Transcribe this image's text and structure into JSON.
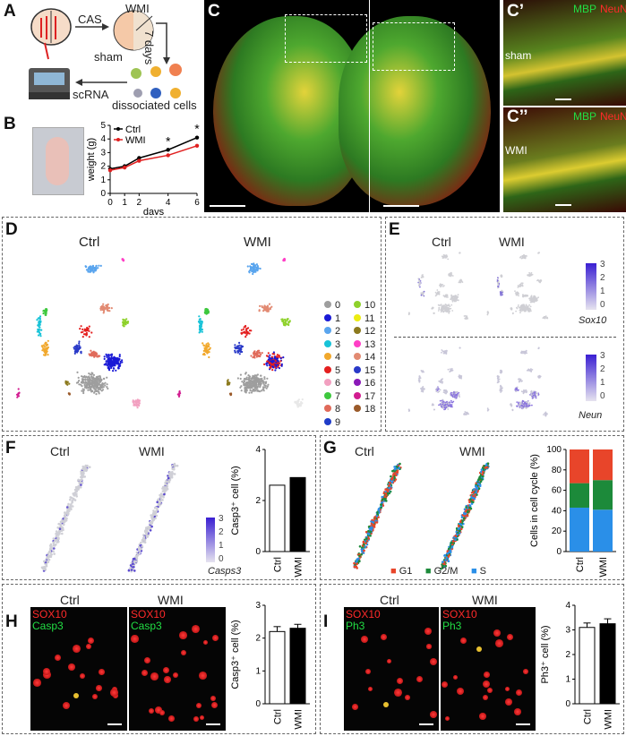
{
  "panels": {
    "A": "A",
    "B": "B",
    "C": "C",
    "C1": "C’",
    "C2": "C’’",
    "D": "D",
    "E": "E",
    "F": "F",
    "G": "G",
    "H": "H",
    "I": "I"
  },
  "panelA": {
    "cas": "CAS",
    "wmi": "WMI",
    "sham": "sham",
    "days": "7 days",
    "scrna": "scRNA",
    "dissociated": "dissociated cells"
  },
  "panelC": {
    "mbp": "MBP",
    "neun": "NeuN",
    "sham": "sham",
    "wmi": "WMI"
  },
  "groups": {
    "ctrl": "Ctrl",
    "wmi": "WMI"
  },
  "panelD": {
    "clusters": [
      "0",
      "1",
      "2",
      "3",
      "4",
      "5",
      "6",
      "7",
      "8",
      "9",
      "10",
      "11",
      "12",
      "13",
      "14",
      "15",
      "16",
      "17",
      "18"
    ],
    "cluster_colors": [
      "#9e9e9e",
      "#1a1ad6",
      "#5aa5ee",
      "#18c3d8",
      "#f1a82c",
      "#e41f1f",
      "#f2a0c0",
      "#3ec83e",
      "#e06a5a",
      "#1f3cc8",
      "#8ed12b",
      "#ecec12",
      "#8c7a1e",
      "#ff3fc6",
      "#e28a72",
      "#2a3ac8",
      "#8a19b8",
      "#d21c90",
      "#9a5a2a"
    ]
  },
  "panelE": {
    "genes": [
      "Sox10",
      "Neun"
    ],
    "scale_ticks": [
      "3",
      "2",
      "1",
      "0"
    ]
  },
  "panelF": {
    "gene": "Casps3",
    "scale_ticks": [
      "3",
      "2",
      "1",
      "0"
    ]
  },
  "panelG": {
    "legend": [
      "G1",
      "G2/M",
      "S"
    ],
    "legend_colors": [
      "#e8452a",
      "#1c8a3a",
      "#2a8fe8"
    ]
  },
  "panelH": {
    "stain1": "SOX10",
    "stain2": "Casp3"
  },
  "panelI": {
    "stain1": "SOX10",
    "stain2": "Ph3"
  },
  "chart_data": [
    {
      "id": "B",
      "type": "line",
      "xlabel": "days",
      "ylabel": "weight (g)",
      "x": [
        0,
        1,
        2,
        4,
        6
      ],
      "xlim": [
        0,
        6
      ],
      "ylim": [
        0,
        5
      ],
      "yticks": [
        0,
        1,
        2,
        3,
        4,
        5
      ],
      "series": [
        {
          "name": "Ctrl",
          "color": "#000000",
          "values": [
            1.8,
            2.0,
            2.6,
            3.2,
            4.1
          ]
        },
        {
          "name": "WMI",
          "color": "#e02020",
          "values": [
            1.7,
            1.9,
            2.4,
            2.8,
            3.5
          ]
        }
      ],
      "annotations": [
        "*",
        "*"
      ],
      "legend": "top-left"
    },
    {
      "id": "F",
      "type": "bar",
      "categories": [
        "Ctrl",
        "WMI"
      ],
      "values": [
        2.6,
        2.9
      ],
      "ylabel": "Casp3⁺ cell (%)",
      "ylim": [
        0,
        4
      ],
      "yticks": [
        0,
        2,
        4
      ],
      "fills": [
        "#ffffff",
        "#000000"
      ]
    },
    {
      "id": "G",
      "type": "bar",
      "stacked": true,
      "categories": [
        "Ctrl",
        "WMI"
      ],
      "ylabel": "Cells in cell cycle (%)",
      "ylim": [
        0,
        100
      ],
      "yticks": [
        0,
        20,
        40,
        60,
        80,
        100
      ],
      "series": [
        {
          "name": "S",
          "color": "#2a8fe8",
          "values": [
            43,
            41
          ]
        },
        {
          "name": "G2/M",
          "color": "#1c8a3a",
          "values": [
            24,
            29
          ]
        },
        {
          "name": "G1",
          "color": "#e8452a",
          "values": [
            33,
            30
          ]
        }
      ]
    },
    {
      "id": "H",
      "type": "bar",
      "categories": [
        "Ctrl",
        "WMI"
      ],
      "values": [
        2.2,
        2.3
      ],
      "errors": [
        0.15,
        0.12
      ],
      "ylabel": "Casp3⁺ cell (%)",
      "ylim": [
        0,
        3
      ],
      "yticks": [
        0,
        1,
        2,
        3
      ],
      "fills": [
        "#ffffff",
        "#000000"
      ]
    },
    {
      "id": "I",
      "type": "bar",
      "categories": [
        "Ctrl",
        "WMI"
      ],
      "values": [
        3.1,
        3.25
      ],
      "errors": [
        0.18,
        0.2
      ],
      "ylabel": "Ph3⁺ cell (%)",
      "ylim": [
        0,
        4
      ],
      "yticks": [
        0,
        1,
        2,
        3,
        4
      ],
      "fills": [
        "#ffffff",
        "#000000"
      ]
    }
  ]
}
